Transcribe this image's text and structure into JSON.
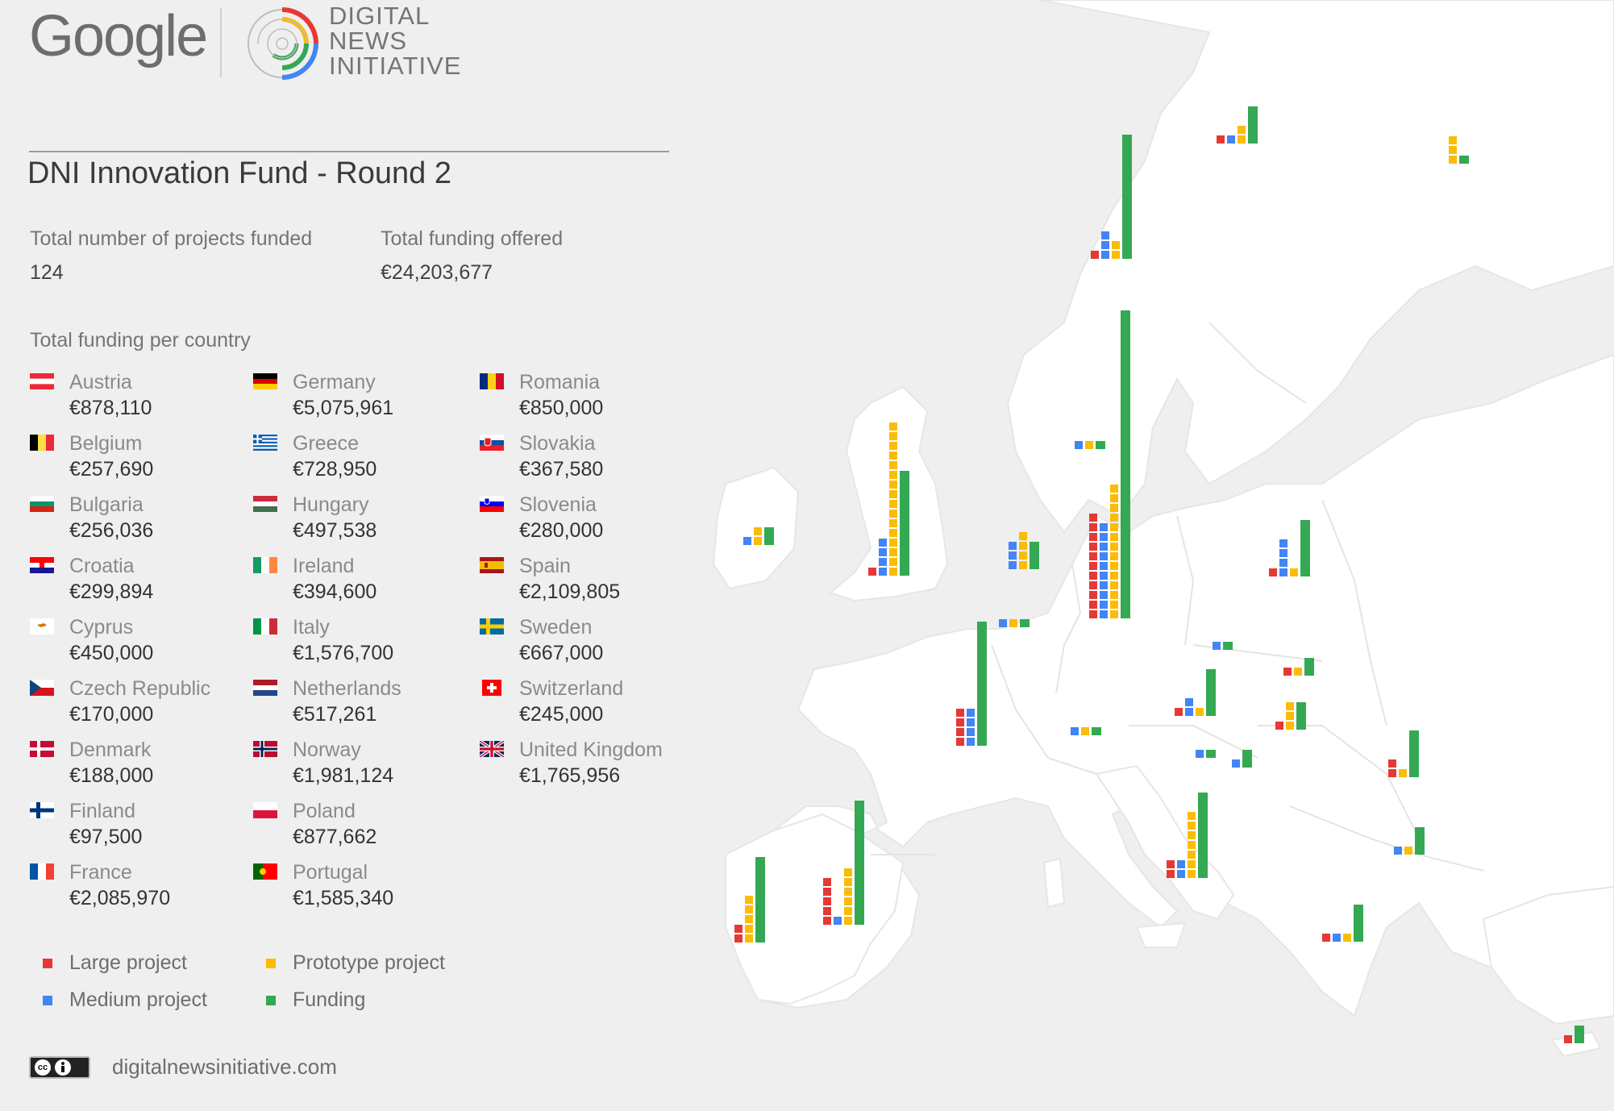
{
  "branding": {
    "google": "Google",
    "dni_lines": [
      "DIGITAL",
      "NEWS",
      "INITIATIVE"
    ]
  },
  "title": "DNI Innovation Fund - Round 2",
  "stats": {
    "projects_label": "Total number of projects funded",
    "projects_value": "124",
    "funding_label": "Total funding offered",
    "funding_value": "€24,203,677"
  },
  "per_country_label": "Total funding per country",
  "countries": [
    {
      "name": "Austria",
      "amount": "€878,110",
      "flag": "austria"
    },
    {
      "name": "Belgium",
      "amount": "€257,690",
      "flag": "belgium"
    },
    {
      "name": "Bulgaria",
      "amount": "€256,036",
      "flag": "bulgaria"
    },
    {
      "name": "Croatia",
      "amount": "€299,894",
      "flag": "croatia"
    },
    {
      "name": "Cyprus",
      "amount": "€450,000",
      "flag": "cyprus"
    },
    {
      "name": "Czech Republic",
      "amount": "€170,000",
      "flag": "czech"
    },
    {
      "name": "Denmark",
      "amount": "€188,000",
      "flag": "denmark"
    },
    {
      "name": "Finland",
      "amount": "€97,500",
      "flag": "finland"
    },
    {
      "name": "France",
      "amount": "€2,085,970",
      "flag": "france"
    },
    {
      "name": "Germany",
      "amount": "€5,075,961",
      "flag": "germany"
    },
    {
      "name": "Greece",
      "amount": "€728,950",
      "flag": "greece"
    },
    {
      "name": "Hungary",
      "amount": "€497,538",
      "flag": "hungary"
    },
    {
      "name": "Ireland",
      "amount": "€394,600",
      "flag": "ireland"
    },
    {
      "name": "Italy",
      "amount": "€1,576,700",
      "flag": "italy"
    },
    {
      "name": "Netherlands",
      "amount": "€517,261",
      "flag": "netherlands"
    },
    {
      "name": "Norway",
      "amount": "€1,981,124",
      "flag": "norway"
    },
    {
      "name": "Poland",
      "amount": "€877,662",
      "flag": "poland"
    },
    {
      "name": "Portugal",
      "amount": "€1,585,340",
      "flag": "portugal"
    },
    {
      "name": "Romania",
      "amount": "€850,000",
      "flag": "romania"
    },
    {
      "name": "Slovakia",
      "amount": "€367,580",
      "flag": "slovakia"
    },
    {
      "name": "Slovenia",
      "amount": "€280,000",
      "flag": "slovenia"
    },
    {
      "name": "Spain",
      "amount": "€2,109,805",
      "flag": "spain"
    },
    {
      "name": "Sweden",
      "amount": "€667,000",
      "flag": "sweden"
    },
    {
      "name": "Switzerland",
      "amount": "€245,000",
      "flag": "switzerland"
    },
    {
      "name": "United Kingdom",
      "amount": "€1,765,956",
      "flag": "uk"
    }
  ],
  "legend": [
    {
      "label": "Large project",
      "color": "#e53935"
    },
    {
      "label": "Medium project",
      "color": "#4285f4"
    },
    {
      "label": "Prototype project",
      "color": "#fbbc05"
    },
    {
      "label": "Funding",
      "color": "#34a853"
    }
  ],
  "footer": {
    "license_icon": "creative-commons-by-icon",
    "license_text": "cc",
    "site": "digitalnewsinitiative.com"
  },
  "colors": {
    "large": "#e53935",
    "medium": "#4285f4",
    "prototype": "#fbbc05",
    "funding": "#34a853",
    "land": "#ffffff",
    "sea": "#efefef"
  },
  "map_bars": [
    {
      "country": "Norway",
      "large": 1,
      "medium": 3,
      "prototype": 2,
      "funding": 13
    },
    {
      "country": "Sweden",
      "large": 1,
      "medium": 1,
      "prototype": 2,
      "funding": 4
    },
    {
      "country": "Finland",
      "large": 0,
      "medium": 0,
      "prototype": 3,
      "funding": 1
    },
    {
      "country": "Denmark",
      "large": 0,
      "medium": 1,
      "prototype": 1,
      "funding": 1
    },
    {
      "country": "United Kingdom",
      "large": 1,
      "medium": 4,
      "prototype": 16,
      "funding": 11
    },
    {
      "country": "Ireland",
      "large": 0,
      "medium": 1,
      "prototype": 2,
      "funding": 2
    },
    {
      "country": "Netherlands",
      "large": 0,
      "medium": 3,
      "prototype": 4,
      "funding": 3
    },
    {
      "country": "Belgium",
      "large": 0,
      "medium": 1,
      "prototype": 1,
      "funding": 1
    },
    {
      "country": "Germany",
      "large": 11,
      "medium": 10,
      "prototype": 14,
      "funding": 32
    },
    {
      "country": "Poland",
      "large": 1,
      "medium": 4,
      "prototype": 1,
      "funding": 6
    },
    {
      "country": "Czech Republic",
      "large": 0,
      "medium": 1,
      "prototype": 0,
      "funding": 1
    },
    {
      "country": "Slovakia",
      "large": 1,
      "medium": 0,
      "prototype": 1,
      "funding": 2
    },
    {
      "country": "Austria",
      "large": 1,
      "medium": 2,
      "prototype": 1,
      "funding": 5
    },
    {
      "country": "Hungary",
      "large": 1,
      "medium": 0,
      "prototype": 3,
      "funding": 3
    },
    {
      "country": "France",
      "large": 4,
      "medium": 4,
      "prototype": 0,
      "funding": 13
    },
    {
      "country": "Switzerland",
      "large": 0,
      "medium": 1,
      "prototype": 1,
      "funding": 1
    },
    {
      "country": "Slovenia",
      "large": 0,
      "medium": 1,
      "prototype": 0,
      "funding": 1
    },
    {
      "country": "Croatia",
      "large": 0,
      "medium": 1,
      "prototype": 0,
      "funding": 2
    },
    {
      "country": "Romania",
      "large": 2,
      "medium": 0,
      "prototype": 1,
      "funding": 5
    },
    {
      "country": "Italy",
      "large": 2,
      "medium": 2,
      "prototype": 7,
      "funding": 9
    },
    {
      "country": "Bulgaria",
      "large": 0,
      "medium": 1,
      "prototype": 1,
      "funding": 3
    },
    {
      "country": "Greece",
      "large": 1,
      "medium": 1,
      "prototype": 1,
      "funding": 4
    },
    {
      "country": "Spain",
      "large": 5,
      "medium": 1,
      "prototype": 6,
      "funding": 13
    },
    {
      "country": "Portugal",
      "large": 2,
      "medium": 0,
      "prototype": 5,
      "funding": 9
    },
    {
      "country": "Cyprus",
      "large": 1,
      "medium": 0,
      "prototype": 0,
      "funding": 2
    }
  ]
}
